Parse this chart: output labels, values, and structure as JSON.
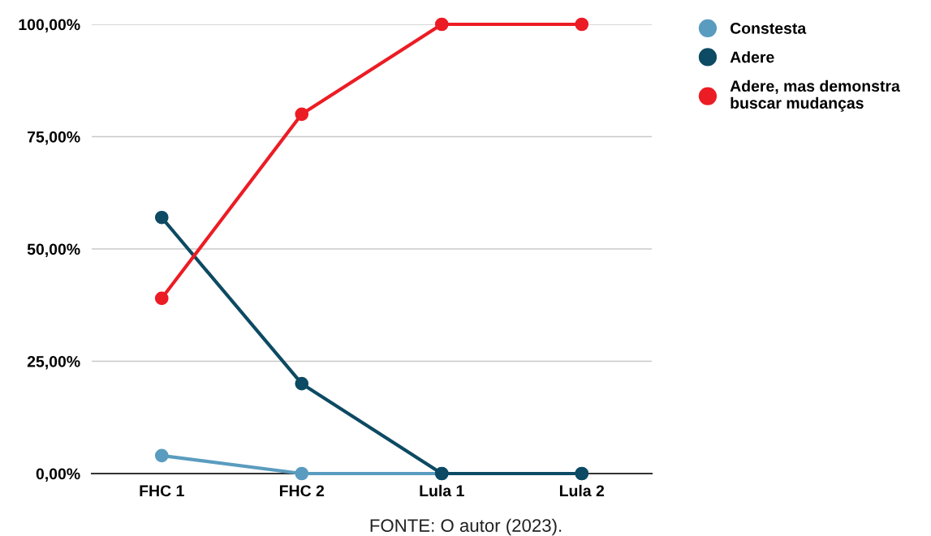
{
  "chart_data": {
    "type": "line",
    "categories": [
      "FHC 1",
      "FHC 2",
      "Lula 1",
      "Lula 2"
    ],
    "series": [
      {
        "name": "Constesta",
        "color": "#5a9cbf",
        "values": [
          4,
          0,
          0,
          0
        ]
      },
      {
        "name": "Adere",
        "color": "#0d4a63",
        "values": [
          57,
          20,
          0,
          0
        ]
      },
      {
        "name": "Adere, mas demonstra buscar mudanças",
        "color": "#ec1c24",
        "values": [
          39,
          80,
          100,
          100
        ]
      }
    ],
    "ylim": [
      0,
      100
    ],
    "yticks": [
      {
        "value": 0,
        "label": "0,00%"
      },
      {
        "value": 25,
        "label": "25,00%"
      },
      {
        "value": 50,
        "label": "50,00%"
      },
      {
        "value": 75,
        "label": "75,00%"
      },
      {
        "value": 100,
        "label": "100,00%"
      }
    ],
    "grid": "y",
    "legend": "top right",
    "marker": "circle",
    "line_style": "solid",
    "annotations": [
      "FONTE: O autor (2023)."
    ]
  }
}
